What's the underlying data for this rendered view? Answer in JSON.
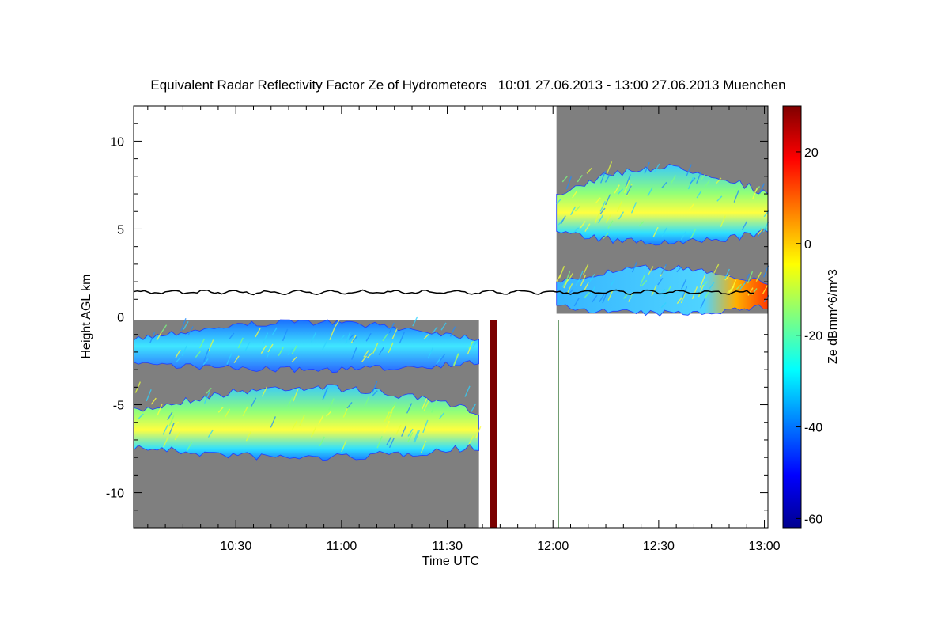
{
  "chart_data": {
    "type": "heatmap",
    "title": "Equivalent Radar Reflectivity Factor Ze of Hydrometeors   10:01 27.06.2013 - 13:00 27.06.2013 Muenchen",
    "xlabel": "Time UTC",
    "ylabel": "Height AGL km",
    "colorbar_label": "Ze dBmm^6/m^3",
    "x_ticks": [
      "10:30",
      "11:00",
      "11:30",
      "12:00",
      "12:30",
      "13:00"
    ],
    "x_tick_values_min": [
      29,
      59,
      89,
      119,
      149,
      179
    ],
    "xlim_min": [
      0,
      180
    ],
    "y_ticks": [
      10,
      5,
      0,
      -5,
      -10
    ],
    "ylim": [
      -12,
      12
    ],
    "colorbar_ticks": [
      20,
      0,
      -20,
      -40,
      -60
    ],
    "colorbar_range": [
      -62,
      30
    ],
    "no_signal_color": "#7f7f7f",
    "cloud_base_height_km": 1.4,
    "bands": [
      {
        "name": "lower-left layer",
        "t_start": 0,
        "t_end": 98,
        "y_bottom": -3.0,
        "y_top": -0.3,
        "ze_mean": -30
      },
      {
        "name": "lower-left upper cloud",
        "t_start": 0,
        "t_end": 98,
        "y_bottom": -8.0,
        "y_top": -4.0,
        "ze_mean": -15
      },
      {
        "name": "upper-right low cloud",
        "t_start": 120,
        "t_end": 180,
        "y_bottom": 0.2,
        "y_top": 2.8,
        "ze_mean": -25
      },
      {
        "name": "upper-right high cloud",
        "t_start": 120,
        "t_end": 180,
        "y_bottom": 4.2,
        "y_top": 8.5,
        "ze_mean": -18
      }
    ]
  }
}
